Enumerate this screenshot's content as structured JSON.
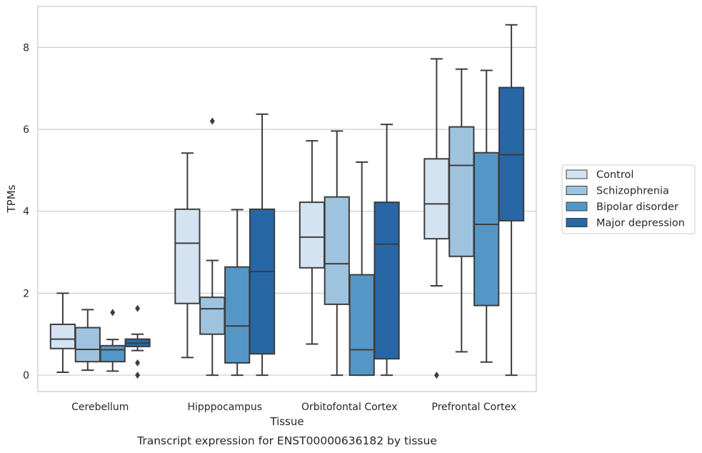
{
  "chart_data": {
    "type": "box",
    "title": "",
    "caption": "Transcript expression for ENST00000636182 by tissue",
    "xlabel": "Tissue",
    "ylabel": "TPMs",
    "ylim": [
      -0.4,
      9.0
    ],
    "yticks": [
      0,
      2,
      4,
      6,
      8
    ],
    "grid": "horizontal",
    "legend_position": "right",
    "categories": [
      "Cerebellum",
      "Hipppocampus",
      "Orbitofontal Cortex",
      "Prefrontal Cortex"
    ],
    "series": [
      {
        "name": "Control",
        "color": "#d4e3f2",
        "boxes": [
          {
            "whislo": 0.07,
            "q1": 0.65,
            "med": 0.88,
            "q3": 1.24,
            "whishi": 2.0,
            "fliers": []
          },
          {
            "whislo": 0.43,
            "q1": 1.75,
            "med": 3.22,
            "q3": 4.05,
            "whishi": 5.42,
            "fliers": []
          },
          {
            "whislo": 0.76,
            "q1": 2.62,
            "med": 3.37,
            "q3": 4.22,
            "whishi": 5.72,
            "fliers": []
          },
          {
            "whislo": 2.18,
            "q1": 3.33,
            "med": 4.18,
            "q3": 5.28,
            "whishi": 7.72,
            "fliers": [
              0.0
            ]
          }
        ]
      },
      {
        "name": "Schizophrenia",
        "color": "#9dc3df",
        "boxes": [
          {
            "whislo": 0.12,
            "q1": 0.33,
            "med": 0.63,
            "q3": 1.16,
            "whishi": 1.6,
            "fliers": []
          },
          {
            "whislo": 0.0,
            "q1": 1.0,
            "med": 1.62,
            "q3": 1.9,
            "whishi": 2.8,
            "fliers": [
              6.2
            ]
          },
          {
            "whislo": 0.0,
            "q1": 1.73,
            "med": 2.72,
            "q3": 4.35,
            "whishi": 5.96,
            "fliers": []
          },
          {
            "whislo": 0.57,
            "q1": 2.9,
            "med": 5.12,
            "q3": 6.06,
            "whishi": 7.47,
            "fliers": []
          }
        ]
      },
      {
        "name": "Bipolar disorder",
        "color": "#5497c6",
        "boxes": [
          {
            "whislo": 0.1,
            "q1": 0.33,
            "med": 0.62,
            "q3": 0.72,
            "whishi": 0.87,
            "fliers": [
              1.53
            ]
          },
          {
            "whislo": 0.0,
            "q1": 0.3,
            "med": 1.2,
            "q3": 2.64,
            "whishi": 4.04,
            "fliers": []
          },
          {
            "whislo": 0.0,
            "q1": 0.0,
            "med": 0.62,
            "q3": 2.45,
            "whishi": 5.2,
            "fliers": []
          },
          {
            "whislo": 0.32,
            "q1": 1.7,
            "med": 3.68,
            "q3": 5.43,
            "whishi": 7.44,
            "fliers": []
          }
        ]
      },
      {
        "name": "Major depression",
        "color": "#2767a6",
        "boxes": [
          {
            "whislo": 0.6,
            "q1": 0.7,
            "med": 0.78,
            "q3": 0.88,
            "whishi": 1.0,
            "fliers": [
              1.63,
              0.3,
              0.0
            ]
          },
          {
            "whislo": 0.0,
            "q1": 0.52,
            "med": 2.53,
            "q3": 4.05,
            "whishi": 6.37,
            "fliers": []
          },
          {
            "whislo": 0.0,
            "q1": 0.4,
            "med": 3.2,
            "q3": 4.22,
            "whishi": 6.12,
            "fliers": []
          },
          {
            "whislo": 0.0,
            "q1": 3.77,
            "med": 5.38,
            "q3": 7.02,
            "whishi": 8.55,
            "fliers": []
          }
        ]
      }
    ]
  }
}
